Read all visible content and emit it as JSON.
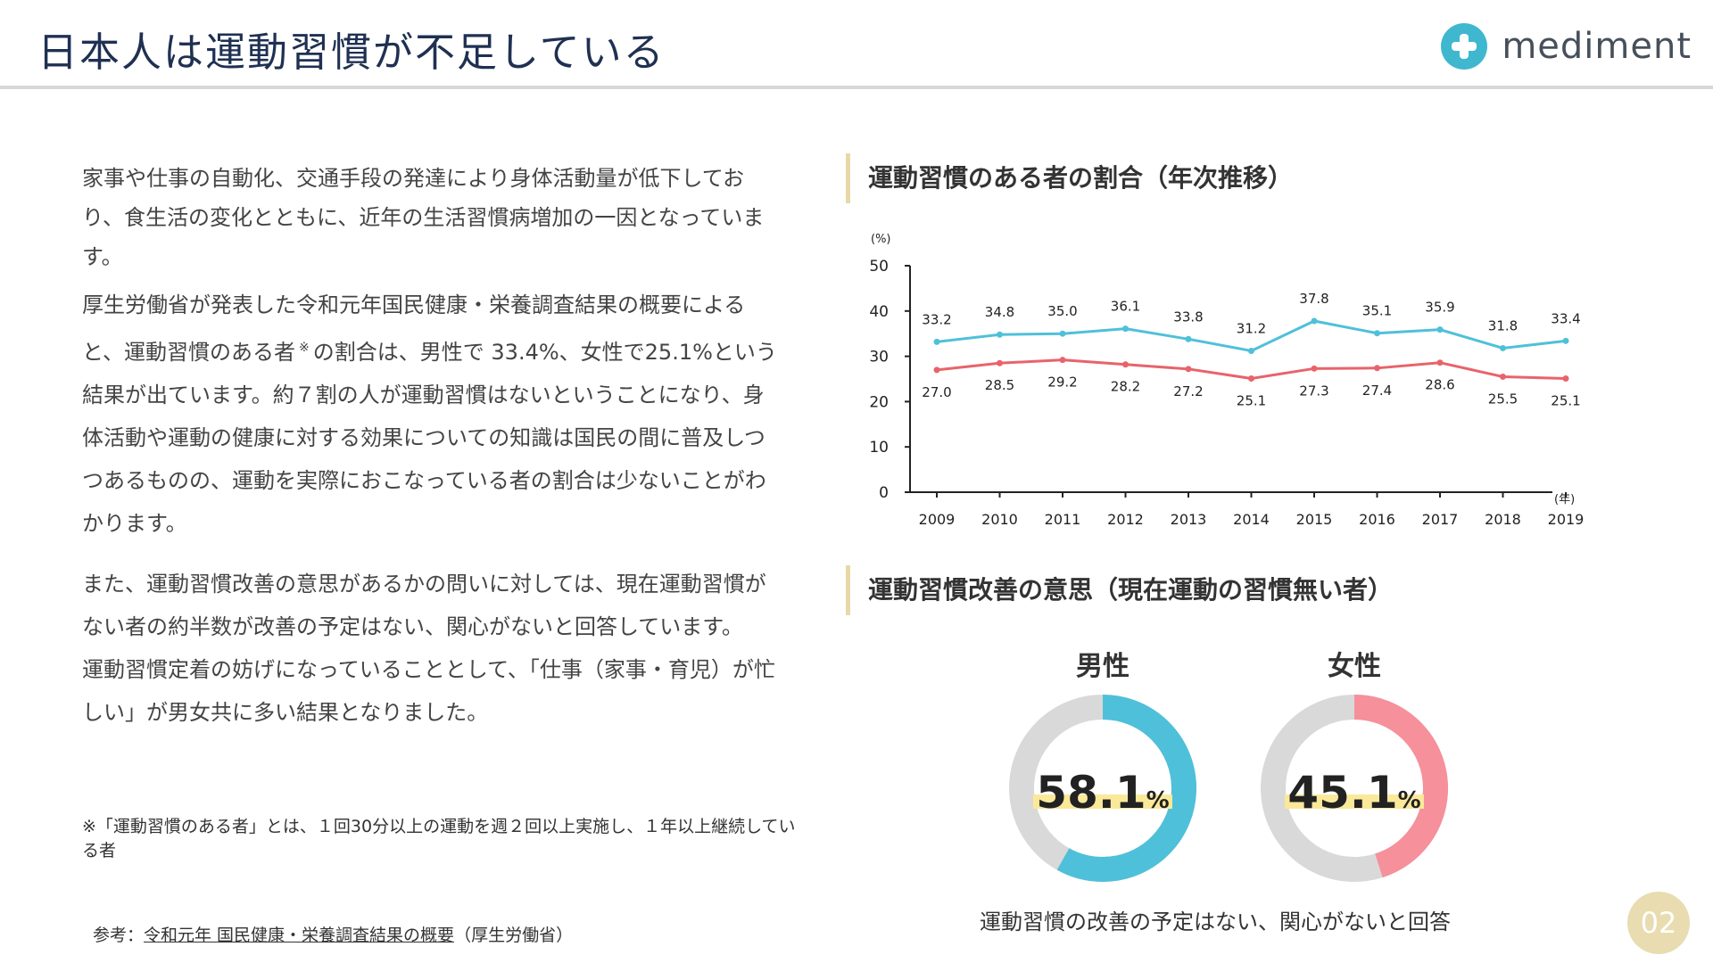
{
  "header": {
    "title": "日本人は運動習慣が不足している",
    "logo_text": "mediment"
  },
  "body": {
    "para1": "家事や仕事の自動化、交通手段の発達により身体活動量が低下しており、食生活の変化とともに、近年の生活習慣病増加の一因となっています。",
    "para2_a": "厚生労働省が発表した令和元年国民健康・栄養調査結果の概要によると、運動習慣のある者",
    "para2_sup": "※",
    "para2_b": "の割合は、男性で 33.4%、女性で25.1%という結果が出ています。約７割の人が運動習慣はないということになり、身体活動や運動の健康に対する効果についての知識は国民の間に普及しつつあるものの、運動を実際におこなっている者の割合は少ないことがわかります。",
    "para3_a": "また、運動習慣改善の意思があるかの問いに対しては、現在運動習慣がない者の約半数が改善の予定はない、関心がないと回答しています。",
    "para3_b": "運動習慣定着の妨げになっていることとして、「仕事（家事・育児）が忙しい」が男女共に多い結果となりました。"
  },
  "footnote": "※「運動習慣のある者」とは、１回30分以上の運動を週２回以上実施し、１年以上継続している者",
  "reference": {
    "prefix": "参考：",
    "link": "令和元年 国民健康・栄養調査結果の概要",
    "suffix": "（厚生労働省）"
  },
  "section1_title": "運動習慣のある者の割合（年次推移）",
  "section2_title": "運動習慣改善の意思（現在運動の習慣無い者）",
  "donut_caption": "運動習慣の改善の予定はない、関心がないと回答",
  "page_number": "02",
  "colors": {
    "male": "#4fc0d9",
    "female": "#e8636b",
    "female_donut": "#f6909b",
    "track": "#d9d9d9",
    "highlight": "#fbe99a"
  },
  "chart_data": [
    {
      "type": "line",
      "title": "",
      "ylabel": "(%)",
      "xlabel": "(年)",
      "ylim": [
        0,
        50
      ],
      "yticks": [
        0,
        10,
        20,
        30,
        40,
        50
      ],
      "x": [
        "2009",
        "2010",
        "2011",
        "2012",
        "2013",
        "2014",
        "2015",
        "2016",
        "2017",
        "2018",
        "2019"
      ],
      "series": [
        {
          "values": [
            33.2,
            34.8,
            35.0,
            36.1,
            33.8,
            31.2,
            37.8,
            35.1,
            35.9,
            31.8,
            33.4
          ],
          "color": "#4fc0d9"
        },
        {
          "values": [
            27.0,
            28.5,
            29.2,
            28.2,
            27.2,
            25.1,
            27.3,
            27.4,
            28.6,
            25.5,
            25.1
          ],
          "color": "#e8636b"
        }
      ],
      "grid": false,
      "data_labels": true
    },
    {
      "type": "pie",
      "title": "男性",
      "values": [
        58.1,
        41.9
      ],
      "label": "58.1",
      "unit": "%",
      "colors": [
        "#4fc0d9",
        "#d9d9d9"
      ]
    },
    {
      "type": "pie",
      "title": "女性",
      "values": [
        45.1,
        54.9
      ],
      "label": "45.1",
      "unit": "%",
      "colors": [
        "#f6909b",
        "#d9d9d9"
      ]
    }
  ]
}
